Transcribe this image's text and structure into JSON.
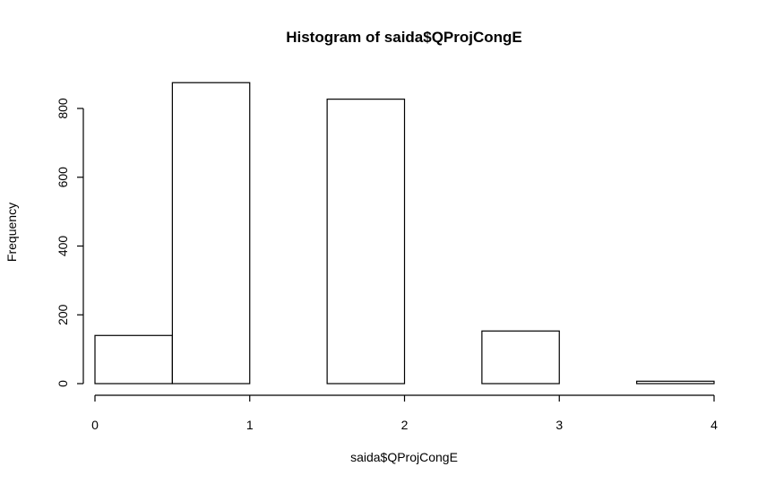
{
  "chart_data": {
    "type": "bar",
    "title": "Histogram of saida$QProjCongE",
    "xlabel": "saida$QProjCongE",
    "ylabel": "Frequency",
    "bins": [
      {
        "x0": 0.0,
        "x1": 0.5,
        "count": 140
      },
      {
        "x0": 0.5,
        "x1": 1.0,
        "count": 875
      },
      {
        "x0": 1.0,
        "x1": 1.5,
        "count": 0
      },
      {
        "x0": 1.5,
        "x1": 2.0,
        "count": 827
      },
      {
        "x0": 2.0,
        "x1": 2.5,
        "count": 0
      },
      {
        "x0": 2.5,
        "x1": 3.0,
        "count": 153
      },
      {
        "x0": 3.0,
        "x1": 3.5,
        "count": 0
      },
      {
        "x0": 3.5,
        "x1": 4.0,
        "count": 7
      }
    ],
    "xlim": [
      0,
      4
    ],
    "ylim": [
      0,
      875
    ],
    "x_ticks": [
      0,
      1,
      2,
      3,
      4
    ],
    "y_ticks": [
      0,
      200,
      400,
      600,
      800
    ],
    "grid": false
  }
}
